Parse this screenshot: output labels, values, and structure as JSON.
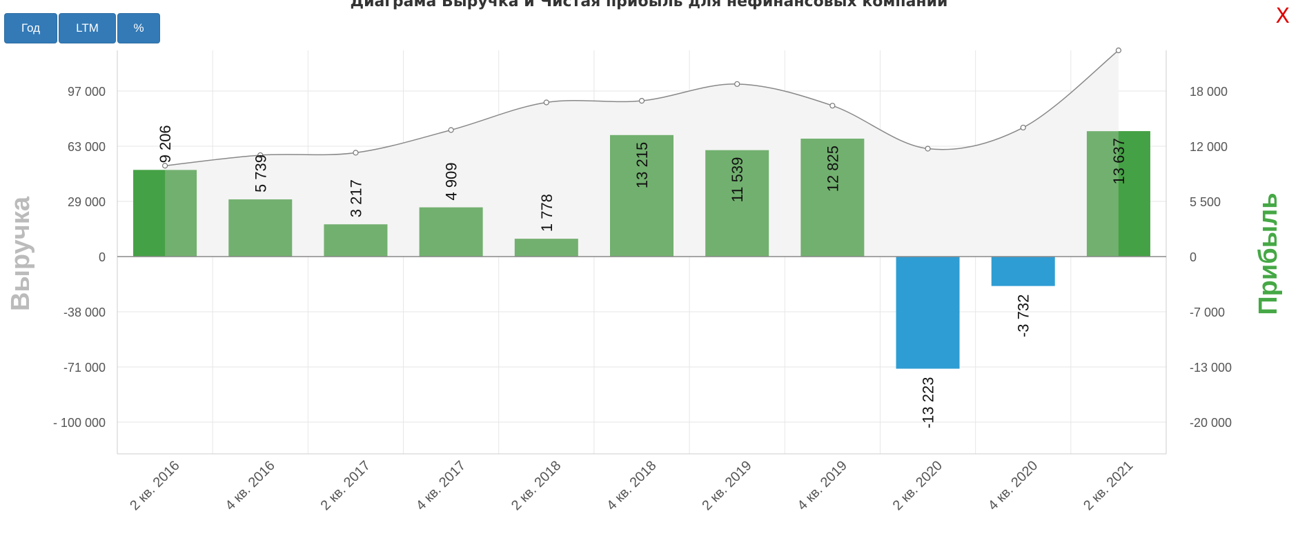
{
  "title": "Диаграма Выручка и Чистая прибыль для нефинансовых компаний",
  "buttons": {
    "year": "Год",
    "ltm": "LTM",
    "pct": "%"
  },
  "close_label": "X",
  "colors": {
    "profit_pos": "#72b06f",
    "profit_pos_dark": "#45a145",
    "profit_neg": "#2e9dd3",
    "revenue_line": "#888888",
    "revenue_fill": "#f4f4f4",
    "left_axis_title": "#bbbbbb",
    "right_axis_title": "#45a845"
  },
  "chart_data": {
    "type": "bar",
    "categories": [
      "2 кв. 2016",
      "4 кв. 2016",
      "2 кв. 2017",
      "4 кв. 2017",
      "2 кв. 2018",
      "4 кв. 2018",
      "2 кв. 2019",
      "4 кв. 2019",
      "2 кв. 2020",
      "4 кв. 2020",
      "2 кв. 2021"
    ],
    "series": [
      {
        "name": "Прибыль",
        "type": "bar",
        "axis": "right",
        "values": [
          9206,
          5739,
          3217,
          4909,
          1778,
          13215,
          11539,
          12825,
          -13223,
          -3732,
          13637
        ]
      },
      {
        "name": "Выручка",
        "type": "area",
        "axis": "left",
        "values": [
          51000,
          57500,
          59000,
          73000,
          90000,
          91000,
          102000,
          88000,
          61500,
          74500,
          126000
        ]
      }
    ],
    "data_labels": [
      "9 206",
      "5 739",
      "3 217",
      "4 909",
      "1 778",
      "13 215",
      "11 539",
      "12 825",
      "-13 223",
      "-3 732",
      "13 637"
    ],
    "left_axis": {
      "title": "Выручка",
      "ticks": [
        "97 000",
        "63 000",
        "29 000",
        "0",
        "-38 000",
        "-71 000",
        "- 100 000"
      ]
    },
    "right_axis": {
      "title": "Прибыль",
      "ticks": [
        "18 000",
        "12 000",
        "5 500",
        "0",
        "-7 000",
        "-13 000",
        "-20 000"
      ]
    },
    "grid": true
  }
}
